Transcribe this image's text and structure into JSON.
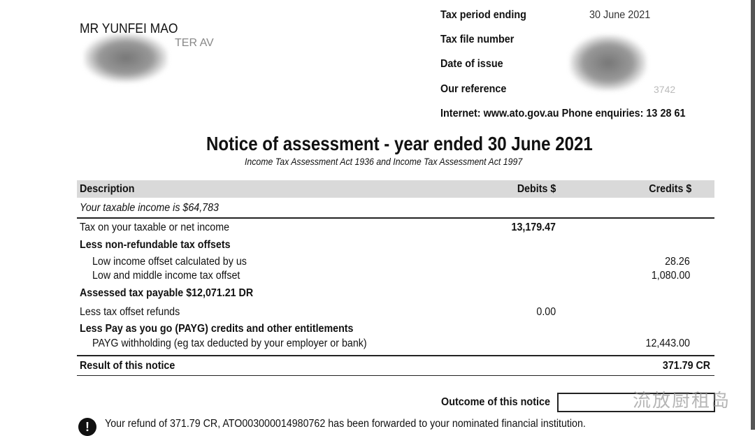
{
  "recipient": {
    "name": "MR YUNFEI MAO",
    "address_partial": "TER AV"
  },
  "header": {
    "tax_period_label": "Tax period ending",
    "tax_period_value": "30 June 2021",
    "tfn_label": "Tax file number",
    "date_issue_label": "Date of issue",
    "reference_label": "Our reference",
    "reference_partial": "3742",
    "contact": "Internet: www.ato.gov.au  Phone enquiries: 13 28 61"
  },
  "title": "Notice of assessment - year ended 30 June 2021",
  "subtitle": "Income Tax Assessment Act 1936 and Income Tax Assessment Act 1997",
  "table": {
    "headers": [
      "Description",
      "Debits $",
      "Credits $"
    ],
    "taxable_income": "Your taxable income is $64,783",
    "rows": [
      {
        "desc": "Tax on your taxable or net income",
        "debit": "13,179.47",
        "credit": ""
      },
      {
        "desc": "Less non-refundable tax offsets",
        "debit": "",
        "credit": ""
      },
      {
        "desc": "Low income offset calculated by us",
        "debit": "",
        "credit": "28.26"
      },
      {
        "desc": "Low and middle income tax offset",
        "debit": "",
        "credit": "1,080.00"
      },
      {
        "desc": "Assessed tax payable $12,071.21 DR",
        "debit": "",
        "credit": ""
      },
      {
        "desc": "Less tax offset refunds",
        "debit": "0.00",
        "credit": ""
      },
      {
        "desc": "Less Pay as you go (PAYG) credits and other entitlements",
        "debit": "",
        "credit": ""
      },
      {
        "desc": "PAYG withholding (eg tax deducted by your employer or bank)",
        "debit": "",
        "credit": "12,443.00"
      }
    ],
    "result_label": "Result of this notice",
    "result_value": "371.79 CR"
  },
  "outcome_label": "Outcome of this notice",
  "refund_text": "Your refund of 371.79 CR, ATO003000014980762 has been forwarded to your nominated financial institution.",
  "watermark": "流放厨租岛"
}
